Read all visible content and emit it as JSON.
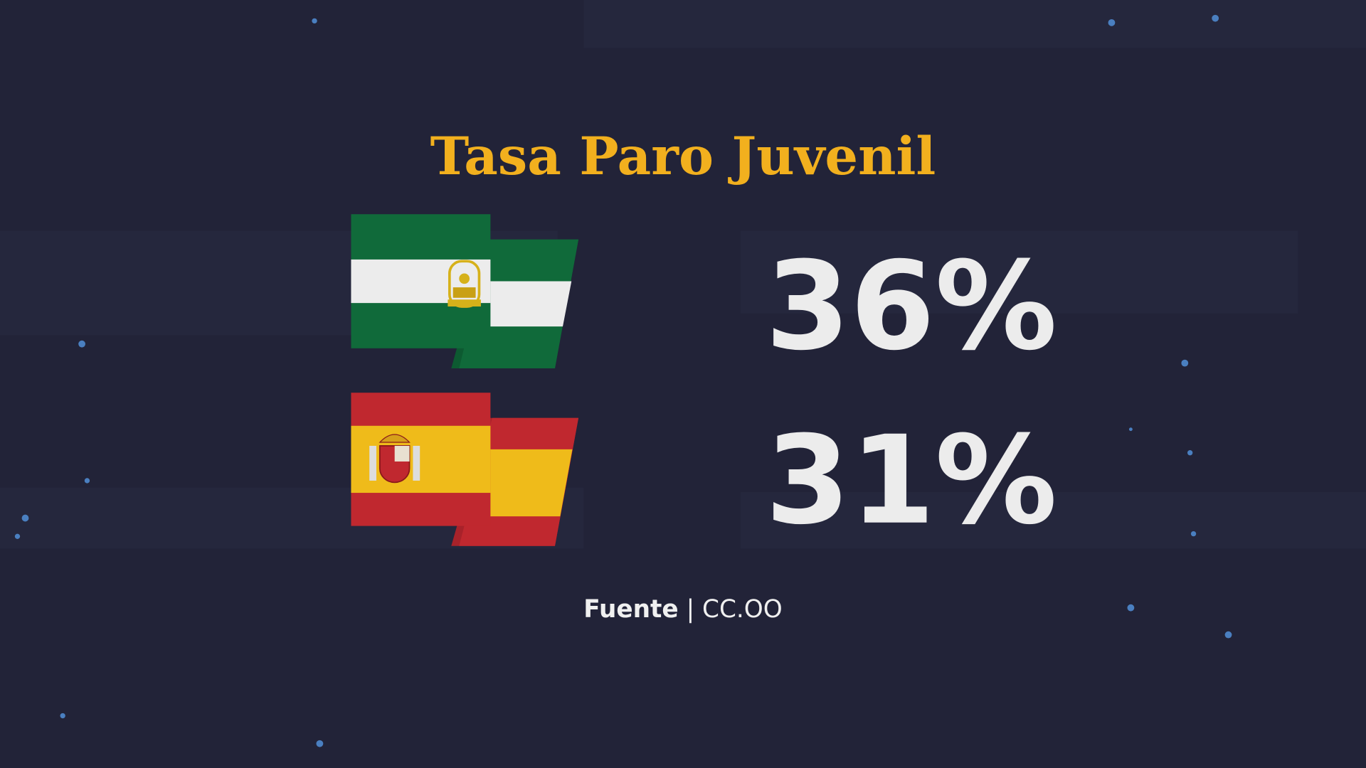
{
  "title": "Tasa Paro Juvenil",
  "rows": [
    {
      "region": "Andalucía",
      "flag_icon": "andalucia-flag",
      "value": "36%"
    },
    {
      "region": "España",
      "flag_icon": "spain-flag",
      "value": "31%"
    }
  ],
  "source": {
    "label": "Fuente",
    "separator": "|",
    "name": "CC.OO"
  },
  "colors": {
    "background": "#222338",
    "title": "#f2b01e",
    "andalucia_green": "#106a3a",
    "white": "#ececec",
    "spain_red": "#c0282f",
    "spain_yellow": "#efbb1a"
  }
}
